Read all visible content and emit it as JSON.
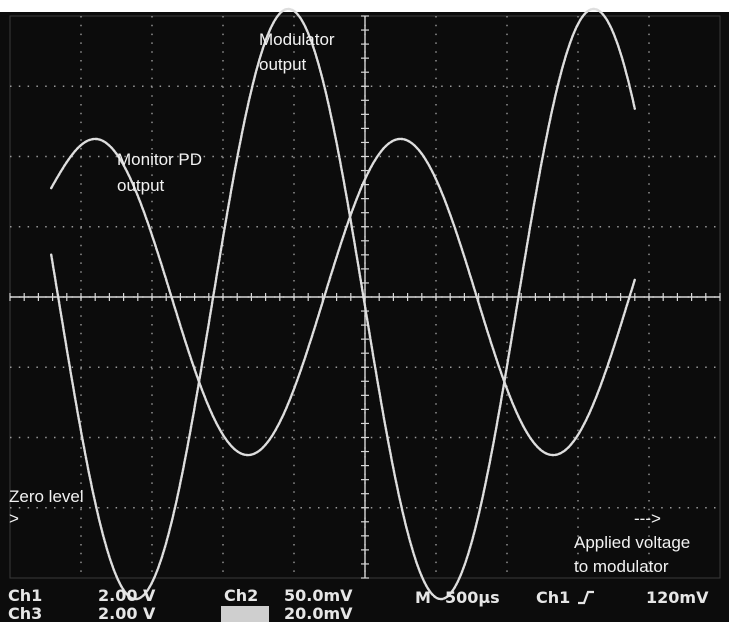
{
  "chart_data": {
    "type": "line",
    "title": "",
    "grid": true,
    "divisions": {
      "x": 10,
      "y": 8
    },
    "x": {
      "unit": "div",
      "range": [
        0,
        10
      ]
    },
    "y": {
      "unit": "div",
      "range": [
        -4,
        4
      ]
    },
    "series": [
      {
        "name": "Monitor PD output",
        "kind": "sine",
        "x_start": 0.58,
        "x_end": 3.35,
        "segments": [
          {
            "x_start": 0.58,
            "x_end": 1.2,
            "y_start": 1.55,
            "y_end": 2.25
          },
          {
            "x_start": 1.2,
            "x_end": 3.35,
            "offset": 0,
            "amplitude": 2.25,
            "period": 4.3,
            "peak_x": 1.2
          }
        ],
        "full_range": [
          0.58,
          8.8
        ],
        "amplitude": 2.25,
        "period": 4.3,
        "first_peak_x": 1.2,
        "offset": 0
      },
      {
        "name": "Modulator output",
        "kind": "sine",
        "full_range": [
          0.58,
          8.8
        ],
        "amplitude": 4.2,
        "period": 4.3,
        "first_peak_x": 3.92,
        "offset": -0.1
      }
    ],
    "annotations": [
      {
        "text_lines": [
          "Modulator",
          "output"
        ]
      },
      {
        "text_lines": [
          "Monitor PD",
          "output"
        ]
      },
      {
        "text_lines": [
          "Zero level",
          ">"
        ]
      },
      {
        "text_lines": [
          "--->"
        ]
      },
      {
        "text_lines": [
          "Applied voltage",
          "to modulator"
        ]
      }
    ]
  },
  "status_bar": {
    "ch1_label": "Ch1",
    "ch1_value": "2.00 V",
    "ch2_label": "Ch2",
    "ch2_value": "50.0mV",
    "ch3_label": "Ch3",
    "ch3_value": "2.00 V",
    "ch4_value": "20.0mV",
    "timebase_label": "M",
    "timebase_value": "500µs",
    "trigger_label": "Ch1",
    "trigger_level": "120mV"
  },
  "colors": {
    "screen_bg": "#0c0c0c",
    "trace": "#dedede",
    "grid": "#9a9a9a",
    "text": "#f2f2f2"
  }
}
